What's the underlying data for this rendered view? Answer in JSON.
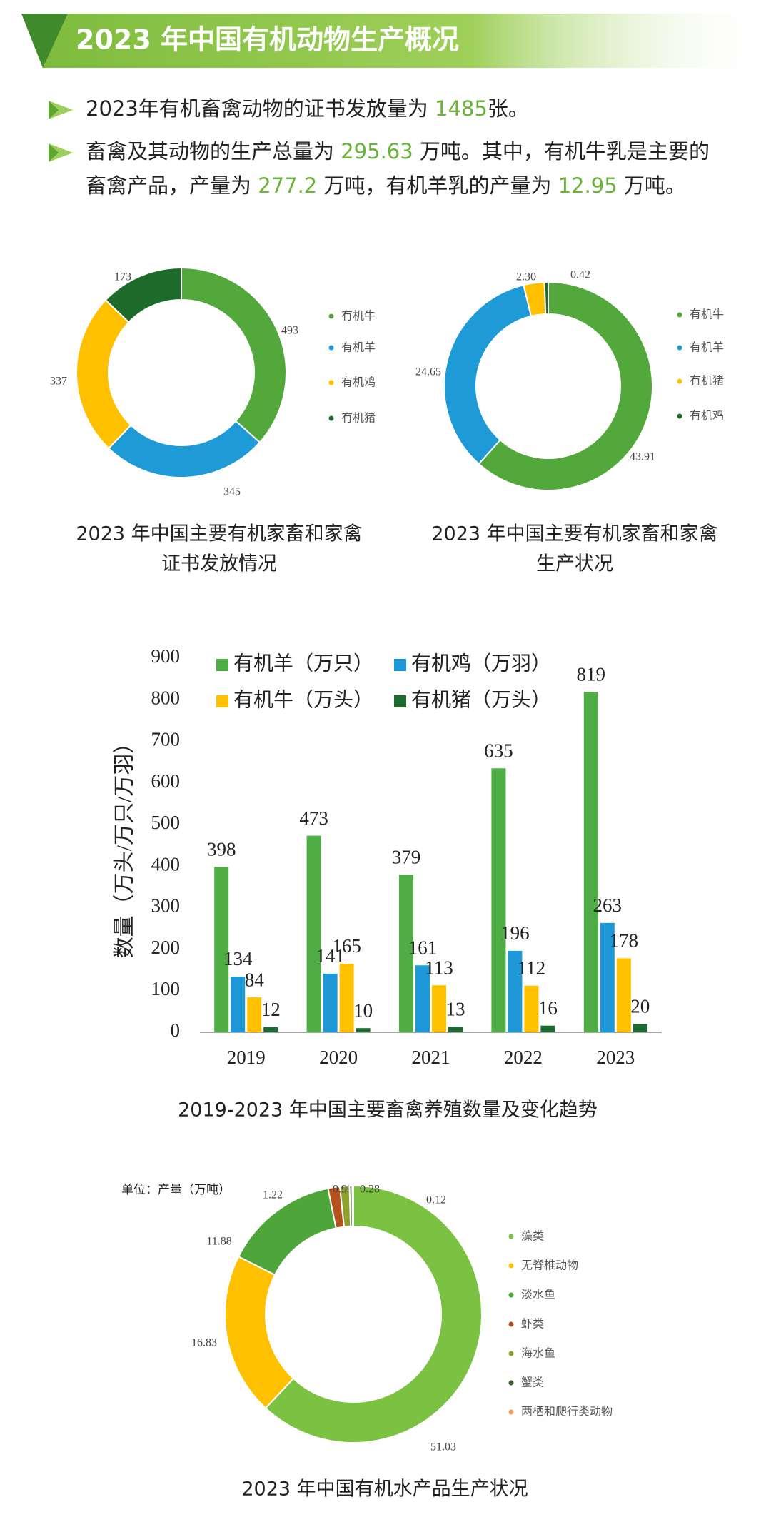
{
  "header": {
    "title": "2023 年中国有机动物生产概况"
  },
  "summary": [
    {
      "bullet": true,
      "parts": [
        "2023年有机畜禽动物的证书发放量为 ",
        "1485",
        "张。"
      ]
    },
    {
      "bullet": true,
      "parts": [
        "畜禽及其动物的生产总量为 ",
        "295.63",
        " 万吨。其中，有机牛乳是主要的"
      ]
    },
    {
      "bullet": false,
      "parts": [
        "畜禽产品，产量为 ",
        "277.2",
        " 万吨，有机羊乳的产量为 ",
        "12.95",
        " 万吨。"
      ]
    }
  ],
  "chart_data": [
    {
      "type": "donut",
      "title": [
        "2023 年中国主要有机家畜和家禽",
        "证书发放情况"
      ],
      "categories": [
        "有机牛",
        "有机羊",
        "有机鸡",
        "有机猪"
      ],
      "values": [
        493,
        345,
        337,
        173
      ],
      "colors": [
        "#52a83b",
        "#1e9ad6",
        "#ffc000",
        "#1d6b2a"
      ]
    },
    {
      "type": "donut",
      "title": [
        "2023 年中国主要有机家畜和家禽",
        "生产状况"
      ],
      "categories": [
        "有机牛",
        "有机羊",
        "有机猪",
        "有机鸡"
      ],
      "values": [
        43.91,
        24.65,
        2.3,
        0.42
      ],
      "value_labels": [
        "43.91",
        "24.65",
        "2.30",
        "0.42"
      ],
      "colors": [
        "#52a83b",
        "#1e9ad6",
        "#ffc000",
        "#1d6b2a"
      ]
    },
    {
      "type": "bar",
      "title": "2019-2023 年中国主要畜禽养殖数量及变化趋势",
      "ylabel": "数量（万头/万只/万羽）",
      "categories": [
        "2019",
        "2020",
        "2021",
        "2022",
        "2023"
      ],
      "series": [
        {
          "name": "有机羊（万只）",
          "color": "#4fad45",
          "values": [
            398,
            473,
            379,
            635,
            819
          ]
        },
        {
          "name": "有机鸡（万羽）",
          "color": "#1e98d6",
          "values": [
            134,
            141,
            161,
            196,
            263
          ]
        },
        {
          "name": "有机牛（万头）",
          "color": "#ffc000",
          "values": [
            84,
            165,
            113,
            112,
            178
          ]
        },
        {
          "name": "有机猪（万头）",
          "color": "#1e6b32",
          "values": [
            12,
            10,
            13,
            16,
            20
          ]
        }
      ],
      "ylim": [
        0,
        900
      ],
      "yticks": [
        0,
        100,
        200,
        300,
        400,
        500,
        600,
        700,
        800,
        900
      ],
      "grid": false
    },
    {
      "type": "donut",
      "title": [
        "2023 年中国有机水产品生产状况"
      ],
      "subtitle": "单位：产量（万吨）",
      "categories": [
        "藻类",
        "无脊椎动物",
        "淡水鱼",
        "虾类",
        "海水鱼",
        "蟹类",
        "两栖和爬行类动物"
      ],
      "values": [
        51.03,
        16.83,
        11.88,
        1.22,
        0.99,
        0.28,
        0.12
      ],
      "colors": [
        "#7cc242",
        "#ffc000",
        "#4ea63a",
        "#b4511d",
        "#8ea12c",
        "#375d2a",
        "#f0a05a"
      ]
    }
  ]
}
